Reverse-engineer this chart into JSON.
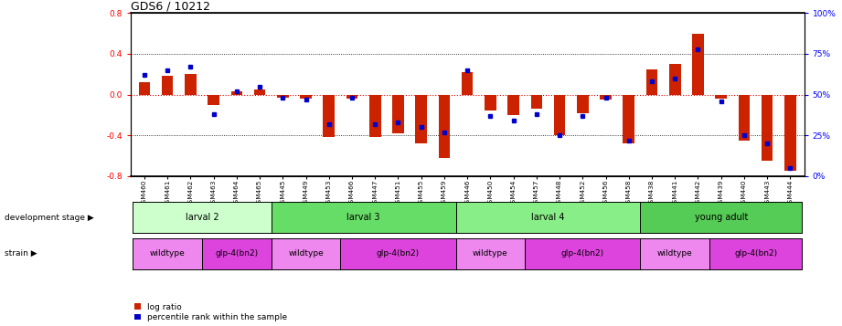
{
  "title": "GDS6 / 10212",
  "samples": [
    "GSM460",
    "GSM461",
    "GSM462",
    "GSM463",
    "GSM464",
    "GSM465",
    "GSM445",
    "GSM449",
    "GSM453",
    "GSM466",
    "GSM447",
    "GSM451",
    "GSM455",
    "GSM459",
    "GSM446",
    "GSM450",
    "GSM454",
    "GSM457",
    "GSM448",
    "GSM452",
    "GSM456",
    "GSM458",
    "GSM438",
    "GSM441",
    "GSM442",
    "GSM439",
    "GSM440",
    "GSM443",
    "GSM444"
  ],
  "log_ratio": [
    0.12,
    0.18,
    0.2,
    -0.1,
    0.03,
    0.05,
    -0.03,
    -0.04,
    -0.42,
    -0.04,
    -0.42,
    -0.38,
    -0.48,
    -0.62,
    0.22,
    -0.16,
    -0.2,
    -0.14,
    -0.4,
    -0.18,
    -0.05,
    -0.48,
    0.25,
    0.3,
    0.6,
    -0.04,
    -0.45,
    -0.65,
    -0.75
  ],
  "percentile": [
    62,
    65,
    67,
    38,
    52,
    55,
    48,
    47,
    32,
    48,
    32,
    33,
    30,
    27,
    65,
    37,
    34,
    38,
    25,
    37,
    48,
    22,
    58,
    60,
    78,
    46,
    25,
    20,
    5
  ],
  "dev_stages": [
    {
      "label": "larval 2",
      "start": 0,
      "end": 6,
      "color": "#ccffcc"
    },
    {
      "label": "larval 3",
      "start": 6,
      "end": 14,
      "color": "#66dd66"
    },
    {
      "label": "larval 4",
      "start": 14,
      "end": 22,
      "color": "#88ee88"
    },
    {
      "label": "young adult",
      "start": 22,
      "end": 29,
      "color": "#55cc55"
    }
  ],
  "strains": [
    {
      "label": "wildtype",
      "start": 0,
      "end": 3,
      "color": "#ee88ee"
    },
    {
      "label": "glp-4(bn2)",
      "start": 3,
      "end": 6,
      "color": "#dd44dd"
    },
    {
      "label": "wildtype",
      "start": 6,
      "end": 9,
      "color": "#ee88ee"
    },
    {
      "label": "glp-4(bn2)",
      "start": 9,
      "end": 14,
      "color": "#dd44dd"
    },
    {
      "label": "wildtype",
      "start": 14,
      "end": 17,
      "color": "#ee88ee"
    },
    {
      "label": "glp-4(bn2)",
      "start": 17,
      "end": 22,
      "color": "#dd44dd"
    },
    {
      "label": "wildtype",
      "start": 22,
      "end": 25,
      "color": "#ee88ee"
    },
    {
      "label": "glp-4(bn2)",
      "start": 25,
      "end": 29,
      "color": "#dd44dd"
    }
  ],
  "ylim": [
    -0.8,
    0.8
  ],
  "yticks_left": [
    -0.8,
    -0.4,
    0.0,
    0.4,
    0.8
  ],
  "yticks_right": [
    0,
    25,
    50,
    75,
    100
  ],
  "bar_color": "#cc2200",
  "dot_color": "#0000cc",
  "zero_line_color": "#cc0000",
  "title_fontsize": 9,
  "tick_fontsize": 6.5,
  "bar_width": 0.5
}
